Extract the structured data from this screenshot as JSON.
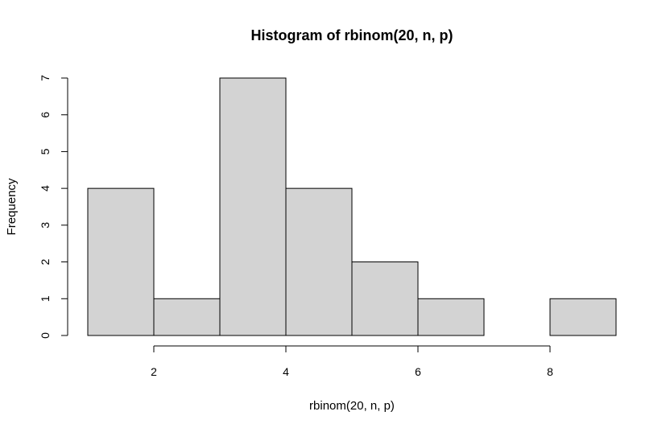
{
  "chart_data": {
    "type": "bar",
    "title": "Histogram of rbinom(20, n, p)",
    "xlabel": "rbinom(20, n, p)",
    "ylabel": "Frequency",
    "bins": [
      {
        "start": 1,
        "end": 2,
        "count": 4
      },
      {
        "start": 2,
        "end": 3,
        "count": 1
      },
      {
        "start": 3,
        "end": 4,
        "count": 7
      },
      {
        "start": 4,
        "end": 5,
        "count": 4
      },
      {
        "start": 5,
        "end": 6,
        "count": 2
      },
      {
        "start": 6,
        "end": 7,
        "count": 1
      },
      {
        "start": 7,
        "end": 8,
        "count": 0
      },
      {
        "start": 8,
        "end": 9,
        "count": 1
      }
    ],
    "xlim": [
      1,
      9
    ],
    "ylim": [
      0,
      7
    ],
    "x_ticks": [
      2,
      4,
      6,
      8
    ],
    "y_ticks": [
      0,
      1,
      2,
      3,
      4,
      5,
      6,
      7
    ],
    "grid": false,
    "bar_color": "#d3d3d3",
    "edge_color": "#000000"
  }
}
